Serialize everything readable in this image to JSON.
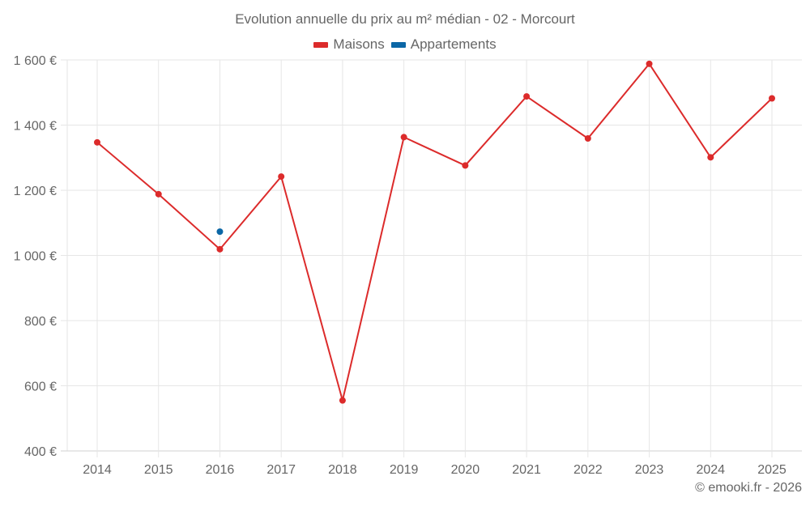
{
  "header": {
    "title": "Evolution annuelle du prix au m² médian - 02 - Morcourt"
  },
  "legend": [
    {
      "label": "Maisons",
      "color": "#dc2b2b"
    },
    {
      "label": "Appartements",
      "color": "#0b67a6"
    }
  ],
  "footer": {
    "credit": "© emooki.fr - 2026"
  },
  "chart_data": {
    "type": "line",
    "title": "Evolution annuelle du prix au m² médian - 02 - Morcourt",
    "xlabel": "",
    "ylabel": "",
    "categories": [
      "2014",
      "2015",
      "2016",
      "2017",
      "2018",
      "2019",
      "2020",
      "2021",
      "2022",
      "2023",
      "2024",
      "2025"
    ],
    "series": [
      {
        "name": "Maisons",
        "color": "#dc2b2b",
        "values": [
          1347,
          1188,
          1019,
          1242,
          555,
          1363,
          1276,
          1488,
          1359,
          1588,
          1301,
          1482
        ]
      },
      {
        "name": "Appartements",
        "color": "#0b67a6",
        "values": [
          null,
          null,
          1073,
          null,
          null,
          null,
          null,
          null,
          null,
          null,
          null,
          null
        ]
      }
    ],
    "ylim": [
      400,
      1600
    ],
    "yticks": [
      400,
      600,
      800,
      1000,
      1200,
      1400,
      1600
    ],
    "ytick_labels": [
      "400 €",
      "600 €",
      "800 €",
      "1 000 €",
      "1 200 €",
      "1 400 €",
      "1 600 €"
    ],
    "grid": true,
    "legend_position": "top"
  }
}
